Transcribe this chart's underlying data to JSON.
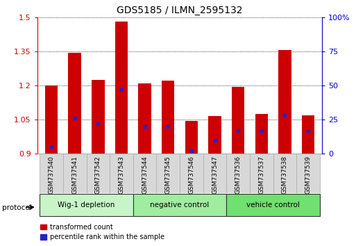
{
  "title": "GDS5185 / ILMN_2595132",
  "samples": [
    "GSM737540",
    "GSM737541",
    "GSM737542",
    "GSM737543",
    "GSM737544",
    "GSM737545",
    "GSM737546",
    "GSM737547",
    "GSM737536",
    "GSM737537",
    "GSM737538",
    "GSM737539"
  ],
  "transformed_count": [
    1.2,
    1.345,
    1.225,
    1.48,
    1.21,
    1.22,
    1.045,
    1.065,
    1.195,
    1.075,
    1.355,
    1.07
  ],
  "percentile_rank": [
    5,
    26,
    22,
    47,
    20,
    20,
    2,
    10,
    17,
    17,
    28,
    17
  ],
  "groups": [
    {
      "label": "Wig-1 depletion",
      "start": 0,
      "end": 4,
      "color": "#c8f5c8"
    },
    {
      "label": "negative control",
      "start": 4,
      "end": 8,
      "color": "#a0eda0"
    },
    {
      "label": "vehicle control",
      "start": 8,
      "end": 12,
      "color": "#70e070"
    }
  ],
  "bar_color": "#cc0000",
  "blue_color": "#2222cc",
  "ylim_left": [
    0.9,
    1.5
  ],
  "ylim_right": [
    0,
    100
  ],
  "yticks_left": [
    0.9,
    1.05,
    1.2,
    1.35,
    1.5
  ],
  "yticks_right": [
    0,
    25,
    50,
    75,
    100
  ],
  "ytick_labels_right": [
    "0",
    "25",
    "50",
    "75",
    "100%"
  ],
  "bar_width": 0.55,
  "bg_color": "#ffffff",
  "grid_color": "#000000",
  "left_tick_color": "#cc0000",
  "right_tick_color": "#0000cc",
  "legend_items": [
    {
      "label": "transformed count",
      "color": "#cc0000"
    },
    {
      "label": "percentile rank within the sample",
      "color": "#2222cc"
    }
  ],
  "protocol_label": "protocol"
}
